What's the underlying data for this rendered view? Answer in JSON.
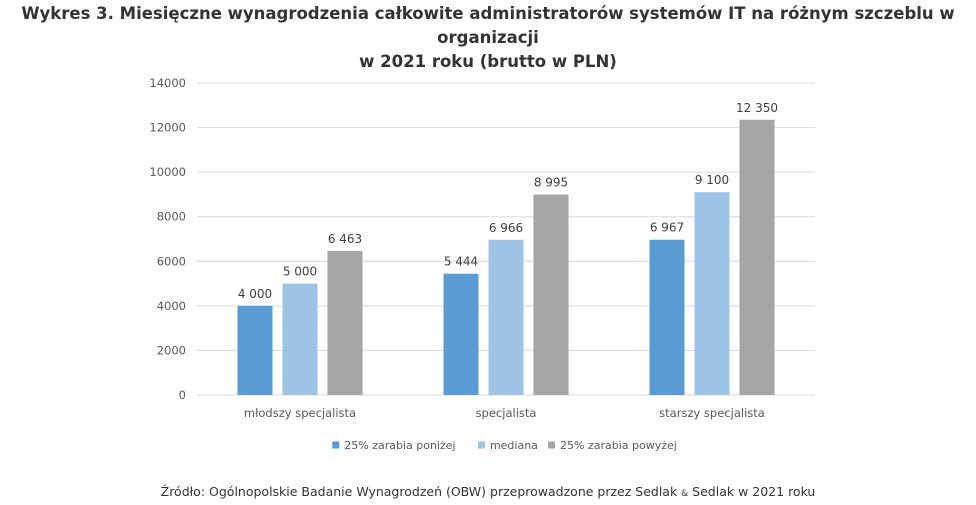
{
  "title": {
    "line1": "Wykres 3. Miesięczne wynagrodzenia całkowite administratorów systemów IT na różnym szczeblu w organizacji",
    "line2": "w 2021 roku (brutto w PLN)"
  },
  "source": {
    "before": "Źródło: Ogólnopolskie Badanie Wynagrodzeń (OBW) przeprowadzone przez Sedlak ",
    "amp": "&",
    "after": " Sedlak w 2021 roku"
  },
  "chart_data": {
    "type": "bar",
    "categories": [
      "młodszy specjalista",
      "specjalista",
      "starszy specjalista"
    ],
    "series": [
      {
        "name": "25% zarabia poniżej",
        "color": "#5b9bd5",
        "values": [
          4000,
          5444,
          6967
        ],
        "labels": [
          "4 000",
          "5 444",
          "6 967"
        ]
      },
      {
        "name": "mediana",
        "color": "#9dc3e6",
        "values": [
          5000,
          6966,
          9100
        ],
        "labels": [
          "5 000",
          "6 966",
          "9 100"
        ]
      },
      {
        "name": "25% zarabia powyżej",
        "color": "#a5a5a5",
        "values": [
          6463,
          8995,
          12350
        ],
        "labels": [
          "6 463",
          "8 995",
          "12 350"
        ]
      }
    ],
    "yticks": [
      0,
      2000,
      4000,
      6000,
      8000,
      10000,
      12000,
      14000
    ],
    "ylim": [
      0,
      14000
    ],
    "grid": true,
    "legend": "bottom",
    "gridline_color": "#d9d9d9"
  }
}
